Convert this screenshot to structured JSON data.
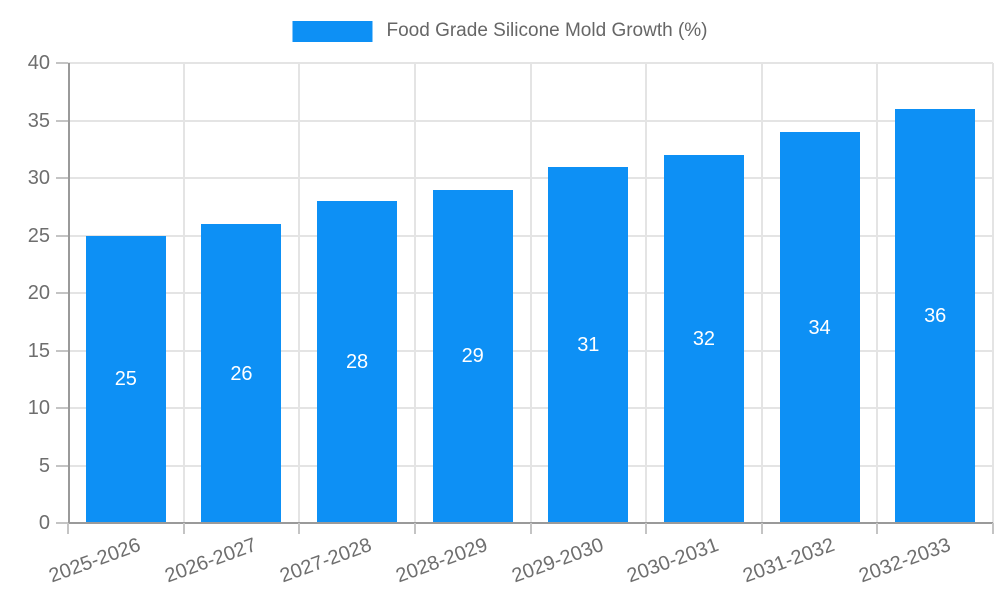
{
  "chart_data": {
    "type": "bar",
    "title": "Food Grade Silicone Mold Growth (%)",
    "categories": [
      "2025-2026",
      "2026-2027",
      "2027-2028",
      "2028-2029",
      "2029-2030",
      "2030-2031",
      "2031-2032",
      "2032-2033"
    ],
    "values": [
      25,
      26,
      28,
      29,
      31,
      32,
      34,
      36
    ],
    "series": [
      {
        "name": "Food Grade Silicone Mold Growth (%)",
        "values": [
          25,
          26,
          28,
          29,
          31,
          32,
          34,
          36
        ]
      }
    ],
    "xlabel": "",
    "ylabel": "",
    "ylim": [
      0,
      40
    ],
    "ytick_step": 5,
    "yticks": [
      0,
      5,
      10,
      15,
      20,
      25,
      30,
      35,
      40
    ],
    "grid": true,
    "legend": {
      "label": "Food Grade Silicone Mold Growth (%)",
      "position": "top-center"
    },
    "value_labels_position": "inside-center",
    "colors": {
      "bar": "#0d90f5",
      "value_label": "#ffffff",
      "gridline": "#e4e4e4",
      "axis_line": "#9a9a9a",
      "tick": "#c4c4c4",
      "axis_text": "#6e6e6e",
      "legend_text": "#666666"
    }
  }
}
